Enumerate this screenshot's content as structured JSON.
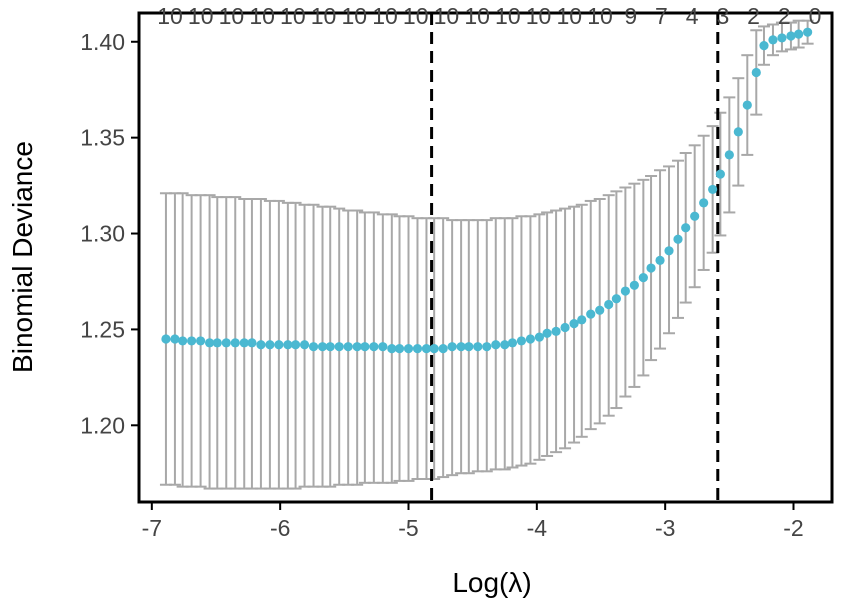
{
  "chart_data": {
    "type": "scatter",
    "xlabel": "Log(λ)",
    "ylabel": "Binomial Deviance",
    "xlim": [
      -7.1,
      -1.7
    ],
    "ylim": [
      1.16,
      1.415
    ],
    "x_ticks": [
      -7,
      -6,
      -5,
      -4,
      -3,
      -2
    ],
    "x_tick_labels": [
      "-7",
      "-6",
      "-5",
      "-4",
      "-3",
      "-2"
    ],
    "y_ticks": [
      1.2,
      1.25,
      1.3,
      1.35,
      1.4
    ],
    "y_tick_labels": [
      "1.20",
      "1.25",
      "1.30",
      "1.35",
      "1.40"
    ],
    "top_counts": [
      "10",
      "10",
      "10",
      "10",
      "10",
      "10",
      "10",
      "10",
      "10",
      "10",
      "10",
      "10",
      "10",
      "10",
      "10",
      "9",
      "7",
      "4",
      "3",
      "2",
      "2",
      "0"
    ],
    "vlines": [
      -4.82,
      -2.59
    ],
    "grid": false,
    "point_color": "#4ab8d1",
    "errorbar_color": "#a8a8a8",
    "series": [
      {
        "x": [
          -6.89,
          -6.82,
          -6.76,
          -6.69,
          -6.62,
          -6.55,
          -6.49,
          -6.42,
          -6.35,
          -6.28,
          -6.22,
          -6.15,
          -6.08,
          -6.01,
          -5.94,
          -5.88,
          -5.81,
          -5.74,
          -5.67,
          -5.61,
          -5.54,
          -5.47,
          -5.4,
          -5.34,
          -5.27,
          -5.2,
          -5.13,
          -5.07,
          -5.0,
          -4.93,
          -4.86,
          -4.8,
          -4.73,
          -4.66,
          -4.59,
          -4.53,
          -4.46,
          -4.39,
          -4.32,
          -4.25,
          -4.19,
          -4.12,
          -4.05,
          -3.98,
          -3.92,
          -3.85,
          -3.78,
          -3.71,
          -3.65,
          -3.58,
          -3.51,
          -3.44,
          -3.38,
          -3.31,
          -3.24,
          -3.17,
          -3.11,
          -3.04,
          -2.97,
          -2.9,
          -2.84,
          -2.77,
          -2.7,
          -2.63,
          -2.57,
          -2.5,
          -2.43,
          -2.36,
          -2.29,
          -2.23,
          -2.16,
          -2.09,
          -2.02,
          -1.96,
          -1.89
        ],
        "y": [
          1.245,
          1.245,
          1.244,
          1.244,
          1.244,
          1.243,
          1.243,
          1.243,
          1.243,
          1.243,
          1.243,
          1.242,
          1.242,
          1.242,
          1.242,
          1.242,
          1.242,
          1.241,
          1.241,
          1.241,
          1.241,
          1.241,
          1.241,
          1.241,
          1.241,
          1.241,
          1.24,
          1.24,
          1.24,
          1.24,
          1.24,
          1.24,
          1.24,
          1.241,
          1.241,
          1.241,
          1.241,
          1.241,
          1.242,
          1.242,
          1.243,
          1.244,
          1.245,
          1.246,
          1.248,
          1.249,
          1.251,
          1.253,
          1.255,
          1.258,
          1.26,
          1.263,
          1.266,
          1.27,
          1.273,
          1.277,
          1.282,
          1.286,
          1.291,
          1.297,
          1.303,
          1.309,
          1.316,
          1.323,
          1.331,
          1.341,
          1.353,
          1.367,
          1.384,
          1.398,
          1.401,
          1.402,
          1.403,
          1.404,
          1.405
        ],
        "y_upper": [
          1.321,
          1.321,
          1.321,
          1.32,
          1.32,
          1.32,
          1.319,
          1.319,
          1.319,
          1.318,
          1.318,
          1.318,
          1.317,
          1.317,
          1.316,
          1.316,
          1.315,
          1.315,
          1.314,
          1.314,
          1.313,
          1.312,
          1.312,
          1.311,
          1.311,
          1.31,
          1.31,
          1.309,
          1.309,
          1.308,
          1.308,
          1.308,
          1.308,
          1.307,
          1.307,
          1.307,
          1.307,
          1.307,
          1.308,
          1.308,
          1.308,
          1.309,
          1.309,
          1.31,
          1.311,
          1.312,
          1.313,
          1.314,
          1.315,
          1.317,
          1.318,
          1.32,
          1.322,
          1.324,
          1.326,
          1.328,
          1.33,
          1.333,
          1.335,
          1.338,
          1.342,
          1.346,
          1.351,
          1.356,
          1.363,
          1.371,
          1.381,
          1.393,
          1.406,
          1.408,
          1.409,
          1.41,
          1.41,
          1.411,
          1.411
        ],
        "y_lower": [
          1.169,
          1.169,
          1.168,
          1.168,
          1.168,
          1.167,
          1.167,
          1.167,
          1.167,
          1.167,
          1.167,
          1.167,
          1.167,
          1.167,
          1.167,
          1.167,
          1.168,
          1.168,
          1.168,
          1.168,
          1.169,
          1.169,
          1.169,
          1.17,
          1.17,
          1.17,
          1.17,
          1.171,
          1.171,
          1.172,
          1.172,
          1.172,
          1.173,
          1.174,
          1.175,
          1.175,
          1.176,
          1.176,
          1.177,
          1.177,
          1.178,
          1.179,
          1.18,
          1.182,
          1.184,
          1.186,
          1.188,
          1.191,
          1.194,
          1.198,
          1.201,
          1.205,
          1.209,
          1.215,
          1.22,
          1.226,
          1.234,
          1.24,
          1.248,
          1.256,
          1.264,
          1.272,
          1.281,
          1.29,
          1.299,
          1.311,
          1.325,
          1.341,
          1.362,
          1.388,
          1.393,
          1.395,
          1.396,
          1.397,
          1.399
        ]
      }
    ]
  }
}
